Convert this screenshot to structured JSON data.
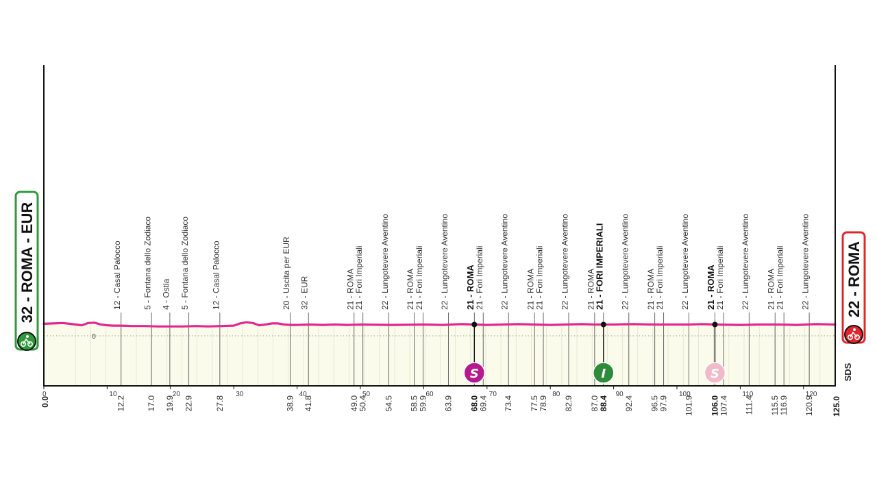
{
  "chart_data": {
    "type": "area",
    "title": "",
    "xlabel": "",
    "ylabel": "",
    "xlim": [
      0,
      125
    ],
    "axis_ticks": [
      0,
      10,
      20,
      30,
      40,
      50,
      60,
      70,
      80,
      90,
      100,
      110,
      120
    ],
    "altitude_ref_label": "0",
    "start": {
      "label": "32 - ROMA - EUR",
      "icon": "start-flag-icon",
      "color": "#2e9a3a"
    },
    "finish": {
      "label": "22 - ROMA",
      "icon": "finish-flag-icon",
      "color": "#e0262c"
    },
    "profile_color": "#e4268f",
    "area_color": "#fbfbeb",
    "brand": "SDS",
    "profile": {
      "x": [
        0,
        1.5,
        3,
        4.5,
        6,
        7,
        8,
        9,
        10,
        11,
        12,
        14,
        16,
        18,
        20,
        22,
        24,
        26,
        28,
        30,
        31,
        32,
        33,
        34,
        35,
        36,
        37,
        38,
        39,
        40,
        42,
        44,
        46,
        48,
        50,
        55,
        60,
        63,
        66,
        68,
        70,
        75,
        80,
        85,
        87,
        90,
        93,
        96,
        99,
        102,
        104,
        106,
        110,
        113,
        116,
        119,
        122,
        125
      ],
      "y": [
        32,
        33,
        34,
        31,
        28,
        34,
        35,
        30,
        28,
        27,
        27,
        26,
        26,
        25,
        25,
        25,
        26,
        25,
        26,
        27,
        33,
        36,
        34,
        28,
        30,
        33,
        33,
        30,
        29,
        29,
        30,
        29,
        30,
        29,
        30,
        29,
        30,
        29,
        31,
        30,
        29,
        31,
        29,
        31,
        30,
        30,
        31,
        30,
        30,
        30,
        31,
        30,
        29,
        30,
        30,
        29,
        31,
        30
      ]
    },
    "waypoints": [
      {
        "km": 12.2,
        "km_label": "12.2",
        "label": "12 - Casal Palocco",
        "bold": false
      },
      {
        "km": 17.0,
        "km_label": "17.0",
        "label": "5 - Fontana dello Zodiaco",
        "bold": false
      },
      {
        "km": 19.9,
        "km_label": "19.9",
        "label": "4 - Ostia",
        "bold": false
      },
      {
        "km": 22.9,
        "km_label": "22.9",
        "label": "5 - Fontana dello Zodiaco",
        "bold": false
      },
      {
        "km": 27.8,
        "km_label": "27.8",
        "label": "12 - Casal Palocco",
        "bold": false
      },
      {
        "km": 38.9,
        "km_label": "38.9",
        "label": "20 - Uscita per EUR",
        "bold": false
      },
      {
        "km": 41.8,
        "km_label": "41.8",
        "label": "32 - EUR",
        "bold": false
      },
      {
        "km": 49.0,
        "km_label": "49.0",
        "label": "21 - ROMA",
        "bold": false
      },
      {
        "km": 50.4,
        "km_label": "50.4",
        "label": "21 - Fori Imperiali",
        "bold": false
      },
      {
        "km": 54.5,
        "km_label": "54.5",
        "label": "22 - Lungotevere Aventino",
        "bold": false
      },
      {
        "km": 58.5,
        "km_label": "58.5",
        "label": "21 - ROMA",
        "bold": false
      },
      {
        "km": 59.9,
        "km_label": "59.9",
        "label": "21 - Fori Imperiali",
        "bold": false
      },
      {
        "km": 63.9,
        "km_label": "63.9",
        "label": "22 - Lungotevere Aventino",
        "bold": false
      },
      {
        "km": 68.0,
        "km_label": "68.0",
        "label": "21 - ROMA",
        "bold": true
      },
      {
        "km": 69.4,
        "km_label": "69.4",
        "label": "21 - Fori Imperiali",
        "bold": false
      },
      {
        "km": 73.4,
        "km_label": "73.4",
        "label": "22 - Lungotevere Aventino",
        "bold": false
      },
      {
        "km": 77.5,
        "km_label": "77.5",
        "label": "21 - ROMA",
        "bold": false
      },
      {
        "km": 78.9,
        "km_label": "78.9",
        "label": "21 - Fori Imperiali",
        "bold": false
      },
      {
        "km": 82.9,
        "km_label": "82.9",
        "label": "22 - Lungotevere Aventino",
        "bold": false
      },
      {
        "km": 87.0,
        "km_label": "87.0",
        "label": "21 - ROMA",
        "bold": false
      },
      {
        "km": 88.4,
        "km_label": "88.4",
        "label": "21 - FORI IMPERIALI",
        "bold": true
      },
      {
        "km": 92.4,
        "km_label": "92.4",
        "label": "22 - Lungotevere Aventino",
        "bold": false
      },
      {
        "km": 96.5,
        "km_label": "96.5",
        "label": "21 - ROMA",
        "bold": false
      },
      {
        "km": 97.9,
        "km_label": "97.9",
        "label": "21 - Fori Imperiali",
        "bold": false
      },
      {
        "km": 101.9,
        "km_label": "101.9",
        "label": "22 - Lungotevere Aventino",
        "bold": false
      },
      {
        "km": 106.0,
        "km_label": "106.0",
        "label": "21 - ROMA",
        "bold": true
      },
      {
        "km": 107.4,
        "km_label": "107.4",
        "label": "21 - Fori Imperiali",
        "bold": false
      },
      {
        "km": 111.4,
        "km_label": "111.4",
        "label": "22 - Lungotevere Aventino",
        "bold": false
      },
      {
        "km": 115.5,
        "km_label": "115.5",
        "label": "21 - ROMA",
        "bold": false
      },
      {
        "km": 116.9,
        "km_label": "116.9",
        "label": "21 - Fori Imperiali",
        "bold": false
      },
      {
        "km": 120.9,
        "km_label": "120.9",
        "label": "22 - Lungotevere Aventino",
        "bold": false
      }
    ],
    "start_km_label": "0.0",
    "finish_km_label": "125.0",
    "sprints": [
      {
        "km": 68.0,
        "letter": "S",
        "color": "#b5198d",
        "text_color": "#ffffff",
        "icon": "sprint-icon"
      },
      {
        "km": 88.4,
        "letter": "I",
        "color": "#2e8b3a",
        "text_color": "#ffffff",
        "icon": "intermediate-sprint-icon"
      },
      {
        "km": 106.0,
        "letter": "S",
        "color": "#f2b9c9",
        "text_color": "#ffffff",
        "icon": "bonus-sprint-icon"
      }
    ]
  }
}
